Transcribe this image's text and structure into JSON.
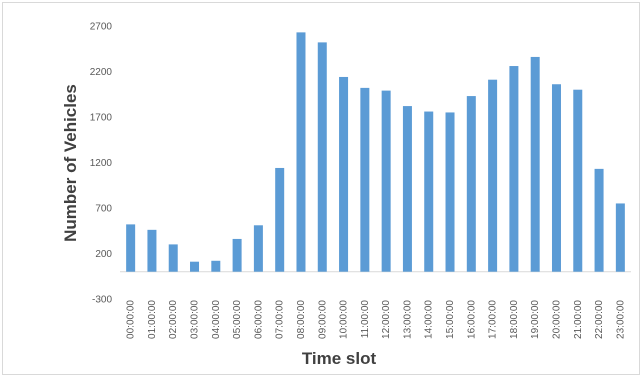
{
  "chart_data": {
    "type": "bar",
    "title": "",
    "xlabel": "Time slot",
    "ylabel": "Number of Vehicles",
    "ylim": [
      -300,
      2700
    ],
    "yticks": [
      -300,
      200,
      700,
      1200,
      1700,
      2200,
      2700
    ],
    "ytick_labels": [
      "-300",
      "200",
      "700",
      "1200",
      "1700",
      "2200",
      "2700"
    ],
    "grid": false,
    "legend": "none",
    "bar_color": "#5b9bd5",
    "categories": [
      "00:00:00",
      "01:00:00",
      "02:00:00",
      "03:00:00",
      "04:00:00",
      "05:00:00",
      "06:00:00",
      "07:00:00",
      "08:00:00",
      "09:00:00",
      "10:00:00",
      "11:00:00",
      "12:00:00",
      "13:00:00",
      "14:00:00",
      "15:00:00",
      "16:00:00",
      "17:00:00",
      "18:00:00",
      "19:00:00",
      "20:00:00",
      "21:00:00",
      "22:00:00",
      "23:00:00"
    ],
    "values": [
      520,
      460,
      300,
      110,
      120,
      360,
      510,
      1140,
      2630,
      2520,
      2140,
      2020,
      1990,
      1820,
      1760,
      1750,
      1930,
      2110,
      2260,
      2360,
      2060,
      2000,
      1130,
      750
    ]
  }
}
